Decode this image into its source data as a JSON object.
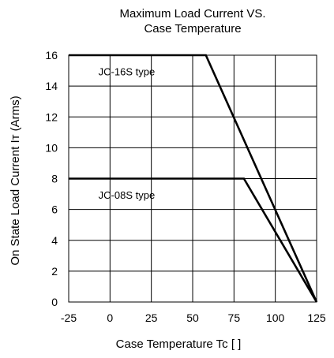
{
  "chart_data": {
    "type": "line",
    "title_lines": [
      "Maximum Load Current VS.",
      "Case Temperature"
    ],
    "xlabel": "Case Temperature Tc [    ]",
    "ylabel": "On State Load Current  Iᴛ (Arms)",
    "xlim": [
      -25,
      125
    ],
    "ylim": [
      0,
      16
    ],
    "x_ticks": [
      -25,
      0,
      25,
      50,
      75,
      100,
      125
    ],
    "x_tick_labels": [
      "-25",
      "0",
      "25",
      "50",
      "75",
      "100",
      "125"
    ],
    "y_ticks": [
      0,
      2,
      4,
      6,
      8,
      10,
      12,
      14,
      16
    ],
    "y_tick_labels": [
      "0",
      "2",
      "4",
      "6",
      "8",
      "10",
      "12",
      "14",
      "16"
    ],
    "grid": true,
    "series": [
      {
        "name": "JC-16S type",
        "x": [
          -25,
          58,
          125
        ],
        "y": [
          16,
          16,
          0
        ],
        "color": "#000000"
      },
      {
        "name": "JC-08S type",
        "x": [
          -25,
          81,
          125
        ],
        "y": [
          8,
          8,
          0
        ],
        "color": "#000000"
      }
    ],
    "annotations": [
      {
        "text": "JC-16S type",
        "x": -7,
        "y": 14.7
      },
      {
        "text": "JC-08S type",
        "x": -7,
        "y": 6.7
      }
    ]
  }
}
